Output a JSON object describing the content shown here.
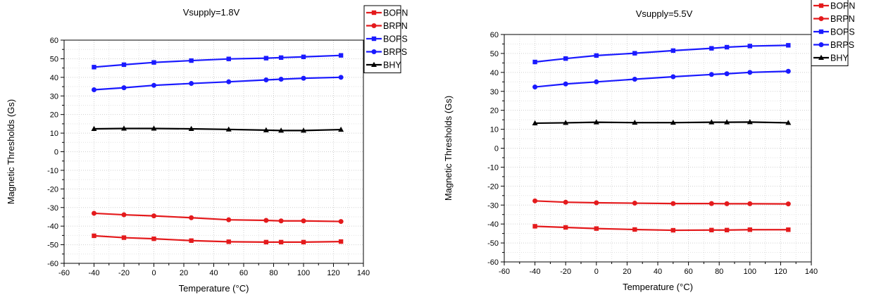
{
  "chart_data": [
    {
      "type": "line",
      "title": "Vsupply=1.8V",
      "xlabel": "Temperature (°C)",
      "ylabel": "Magnetic Thresholds (Gs)",
      "xlim": [
        -60,
        140
      ],
      "ylim": [
        -60,
        60
      ],
      "xticks": [
        -60,
        -40,
        -20,
        0,
        20,
        40,
        60,
        80,
        100,
        120,
        140
      ],
      "yticks": [
        -60,
        -50,
        -40,
        -30,
        -20,
        -10,
        0,
        10,
        20,
        30,
        40,
        50,
        60
      ],
      "grid": true,
      "legend_position": "top-right",
      "x": [
        -40,
        -20,
        0,
        25,
        50,
        75,
        85,
        100,
        125
      ],
      "series": [
        {
          "name": "BOPN",
          "color": "#e41a1c",
          "marker": "square",
          "values": [
            -45.2,
            -46.2,
            -46.8,
            -47.8,
            -48.4,
            -48.6,
            -48.6,
            -48.6,
            -48.3
          ]
        },
        {
          "name": "BRPN",
          "color": "#e41a1c",
          "marker": "circle",
          "values": [
            -33.1,
            -33.9,
            -34.5,
            -35.5,
            -36.6,
            -36.9,
            -37.2,
            -37.2,
            -37.5
          ]
        },
        {
          "name": "BOPS",
          "color": "#1a1aff",
          "marker": "square",
          "values": [
            45.5,
            46.8,
            48.0,
            49.0,
            49.9,
            50.3,
            50.6,
            51.0,
            51.8
          ]
        },
        {
          "name": "BRPS",
          "color": "#1a1aff",
          "marker": "circle",
          "values": [
            33.3,
            34.4,
            35.7,
            36.7,
            37.6,
            38.6,
            39.0,
            39.5,
            40.0
          ]
        },
        {
          "name": "BHY",
          "color": "#000000",
          "marker": "triangle",
          "values": [
            12.3,
            12.5,
            12.5,
            12.3,
            12.0,
            11.6,
            11.4,
            11.4,
            11.9
          ]
        }
      ]
    },
    {
      "type": "line",
      "title": "Vsupply=5.5V",
      "xlabel": "Temperature (°C)",
      "ylabel": "Magnetic Thresholds (Gs)",
      "xlim": [
        -60,
        140
      ],
      "ylim": [
        -60,
        60
      ],
      "xticks": [
        -60,
        -40,
        -20,
        0,
        20,
        40,
        60,
        80,
        100,
        120,
        140
      ],
      "yticks": [
        -60,
        -50,
        -40,
        -30,
        -20,
        -10,
        0,
        10,
        20,
        30,
        40,
        50,
        60
      ],
      "grid": true,
      "legend_position": "top-right",
      "x": [
        -40,
        -20,
        0,
        25,
        50,
        75,
        85,
        100,
        125
      ],
      "series": [
        {
          "name": "BOPN",
          "color": "#e41a1c",
          "marker": "square",
          "values": [
            -41.2,
            -41.8,
            -42.4,
            -42.9,
            -43.3,
            -43.2,
            -43.2,
            -43.0,
            -43.0
          ]
        },
        {
          "name": "BRPN",
          "color": "#e41a1c",
          "marker": "circle",
          "values": [
            -27.8,
            -28.5,
            -28.8,
            -29.0,
            -29.2,
            -29.2,
            -29.3,
            -29.3,
            -29.4
          ]
        },
        {
          "name": "BOPS",
          "color": "#1a1aff",
          "marker": "square",
          "values": [
            45.5,
            47.3,
            48.9,
            50.1,
            51.5,
            52.7,
            53.3,
            53.9,
            54.3
          ]
        },
        {
          "name": "BRPS",
          "color": "#1a1aff",
          "marker": "circle",
          "values": [
            32.3,
            33.9,
            35.0,
            36.4,
            37.7,
            38.9,
            39.3,
            40.0,
            40.6
          ]
        },
        {
          "name": "BHY",
          "color": "#000000",
          "marker": "triangle",
          "values": [
            13.2,
            13.4,
            13.7,
            13.5,
            13.5,
            13.7,
            13.7,
            13.8,
            13.4
          ]
        }
      ]
    }
  ]
}
